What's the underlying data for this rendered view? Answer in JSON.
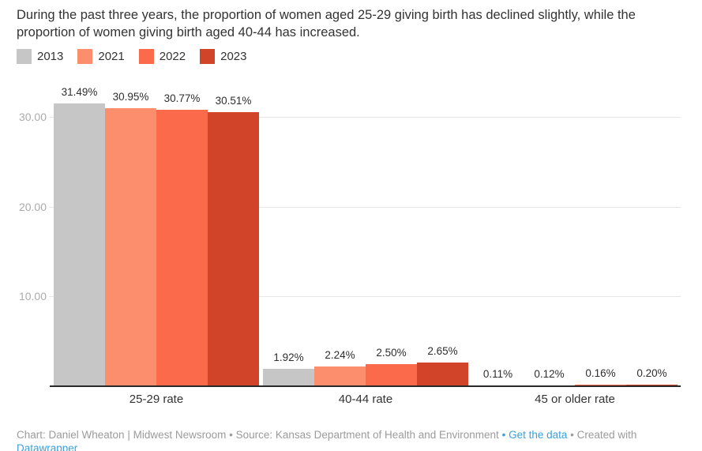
{
  "header": {
    "title": "During the past three years, the proportion of women aged 25-29 giving birth has declined slightly, while the proportion of women giving birth aged 40-44 has increased."
  },
  "chart_data": {
    "type": "bar",
    "title": "During the past three years, the proportion of women aged 25-29 giving birth has declined slightly, while the proportion of women giving birth aged 40-44 has increased.",
    "categories": [
      "25-29 rate",
      "40-44 rate",
      "45 or older rate"
    ],
    "series": [
      {
        "name": "2013",
        "color": "#c6c6c6",
        "values": [
          31.49,
          1.92,
          0.11
        ],
        "labels": [
          "31.49%",
          "1.92%",
          "0.11%"
        ]
      },
      {
        "name": "2021",
        "color": "#fc8d6d",
        "values": [
          30.95,
          2.24,
          0.12
        ],
        "labels": [
          "30.95%",
          "2.24%",
          "0.12%"
        ]
      },
      {
        "name": "2022",
        "color": "#fb6a4a",
        "values": [
          30.77,
          2.5,
          0.16
        ],
        "labels": [
          "30.77%",
          "2.50%",
          "0.16%"
        ]
      },
      {
        "name": "2023",
        "color": "#d2442a",
        "values": [
          30.51,
          2.65,
          0.2
        ],
        "labels": [
          "30.51%",
          "2.65%",
          "0.20%"
        ]
      }
    ],
    "yticks": [
      {
        "value": 10,
        "label": "10.00"
      },
      {
        "value": 20,
        "label": "20.00"
      },
      {
        "value": 30,
        "label": "30.00"
      }
    ],
    "ylim": [
      0,
      33
    ],
    "grid": "horizontal",
    "legend_position": "top-left",
    "value_label_format": "percent, 2 decimals"
  },
  "footer": {
    "byline": "Chart: Daniel Wheaton | Midwest Newsroom",
    "sep1": "•",
    "source": "Source: Kansas Department of Health and Environment",
    "sep2": "•",
    "get_data_label": "Get the data",
    "sep3": "•",
    "created_with": "Created with",
    "datawrapper_label": "Datawrapper"
  }
}
